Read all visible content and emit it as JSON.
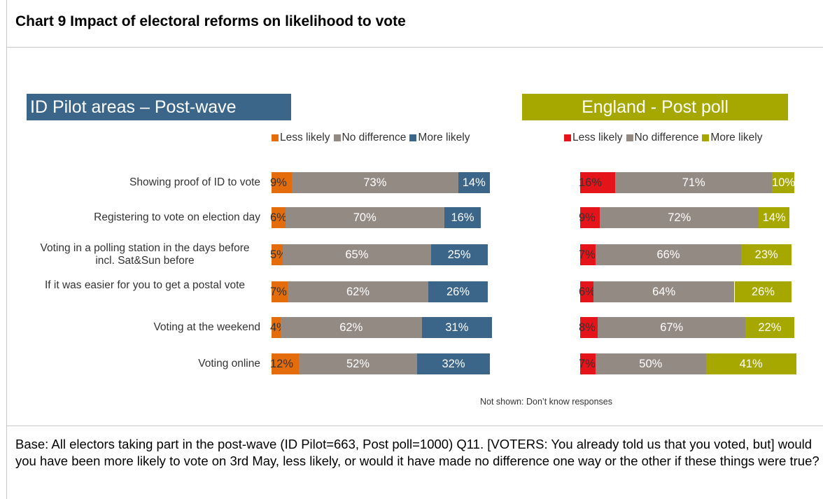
{
  "title": "Chart 9 Impact of electoral reforms on likelihood to vote",
  "note": "Not shown: Don’t know responses",
  "base_text": "Base: All electors taking part in the post-wave (ID Pilot=663, Post poll=1000) Q11. [VOTERS: You already told us that you voted, but] would you have been more likely to vote on 3rd May, less likely, or would it have made no difference one way or the other if these things were true?",
  "chart_data": [
    {
      "type": "bar",
      "orientation": "horizontal",
      "stacked": true,
      "title": "ID Pilot areas – Post-wave",
      "categories": [
        "Showing proof of ID to vote",
        "Registering to vote on election day",
        "Voting in a polling station in the days before incl.  Sat&Sun before",
        "If it was easier for you to get a postal vote",
        "Voting at the weekend",
        "Voting online"
      ],
      "series": [
        {
          "name": "Less likely",
          "color": "#e46c0a",
          "values": [
            9,
            6,
            5,
            7,
            4,
            12
          ],
          "labels": [
            "9%",
            "6%",
            "5%",
            "7%",
            "4%",
            "12%"
          ]
        },
        {
          "name": "No difference",
          "color": "#948a84",
          "values": [
            73,
            70,
            65,
            62,
            62,
            52
          ],
          "labels": [
            "73%",
            "70%",
            "65%",
            "62%",
            "62%",
            "52%"
          ]
        },
        {
          "name": "More likely",
          "color": "#3b6589",
          "values": [
            14,
            16,
            25,
            26,
            31,
            32
          ],
          "labels": [
            "14%",
            "16%",
            "25%",
            "26%",
            "31%",
            "32%"
          ]
        }
      ],
      "legend_position": "top"
    },
    {
      "type": "bar",
      "orientation": "horizontal",
      "stacked": true,
      "title": "England - Post poll",
      "categories": [
        "Showing proof of ID to vote",
        "Registering to vote on election day",
        "Voting in a polling station in the days before incl.  Sat&Sun before",
        "If it was easier for you to get a postal vote",
        "Voting at the weekend",
        "Voting online"
      ],
      "series": [
        {
          "name": "Less likely",
          "color": "#e5141b",
          "values": [
            16,
            9,
            7,
            6,
            8,
            7
          ],
          "labels": [
            "16%",
            "9%",
            "7%",
            "6%",
            "8%",
            "7%"
          ]
        },
        {
          "name": "No difference",
          "color": "#948a84",
          "values": [
            71,
            72,
            66,
            64,
            67,
            50
          ],
          "labels": [
            "71%",
            "72%",
            "66%",
            "64%",
            "67%",
            "50%"
          ]
        },
        {
          "name": "More likely",
          "color": "#a6a800",
          "values": [
            10,
            14,
            23,
            26,
            22,
            41
          ],
          "labels": [
            "10%",
            "14%",
            "23%",
            "26%",
            "22%",
            "41%"
          ]
        }
      ],
      "legend_position": "top"
    }
  ]
}
